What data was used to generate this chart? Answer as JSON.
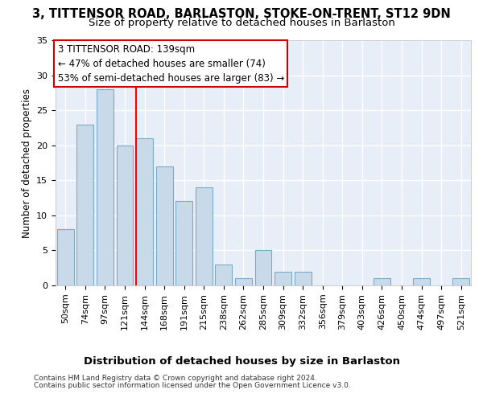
{
  "title1": "3, TITTENSOR ROAD, BARLASTON, STOKE-ON-TRENT, ST12 9DN",
  "title2": "Size of property relative to detached houses in Barlaston",
  "xlabel": "Distribution of detached houses by size in Barlaston",
  "ylabel": "Number of detached properties",
  "footer1": "Contains HM Land Registry data © Crown copyright and database right 2024.",
  "footer2": "Contains public sector information licensed under the Open Government Licence v3.0.",
  "categories": [
    "50sqm",
    "74sqm",
    "97sqm",
    "121sqm",
    "144sqm",
    "168sqm",
    "191sqm",
    "215sqm",
    "238sqm",
    "262sqm",
    "285sqm",
    "309sqm",
    "332sqm",
    "356sqm",
    "379sqm",
    "403sqm",
    "426sqm",
    "450sqm",
    "474sqm",
    "497sqm",
    "521sqm"
  ],
  "values": [
    8,
    23,
    28,
    20,
    21,
    17,
    12,
    14,
    3,
    1,
    5,
    2,
    2,
    0,
    0,
    0,
    1,
    0,
    1,
    0,
    1
  ],
  "bar_color": "#c8daea",
  "bar_edge_color": "#7aaac8",
  "bar_width": 0.85,
  "red_line_x": 3.58,
  "annotation_title": "3 TITTENSOR ROAD: 139sqm",
  "annotation_line1": "← 47% of detached houses are smaller (74)",
  "annotation_line2": "53% of semi-detached houses are larger (83) →",
  "annotation_box_color": "#ffffff",
  "annotation_box_edge": "#cc0000",
  "ylim": [
    0,
    35
  ],
  "yticks": [
    0,
    5,
    10,
    15,
    20,
    25,
    30,
    35
  ],
  "bg_color": "#e8eef8",
  "grid_color": "#ffffff",
  "title1_fontsize": 10.5,
  "title2_fontsize": 9.5,
  "xlabel_fontsize": 9.5,
  "ylabel_fontsize": 8.5,
  "tick_fontsize": 8,
  "annotation_fontsize": 8.5,
  "footer_fontsize": 6.5
}
